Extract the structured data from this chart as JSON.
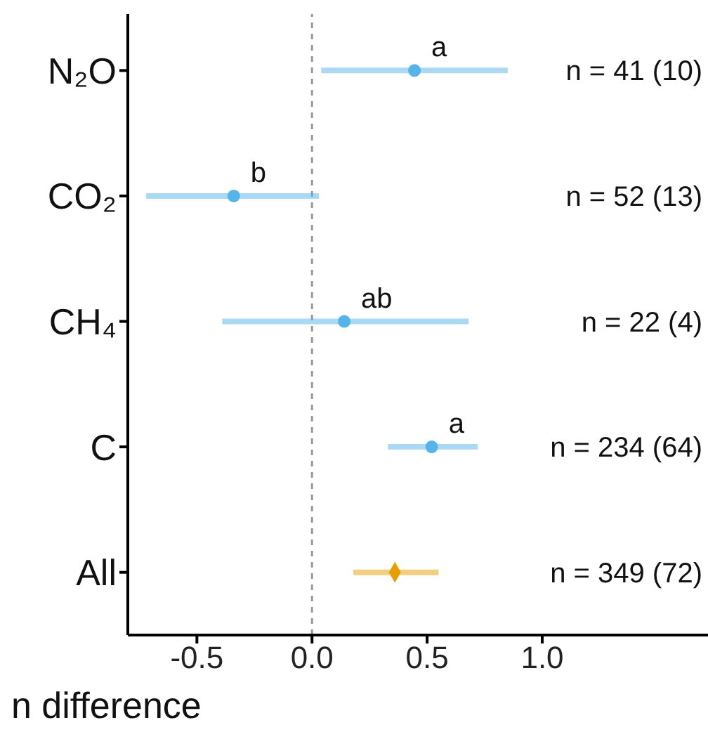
{
  "chart_data": {
    "type": "scatter",
    "orientation": "horizontal",
    "xlabel": "n difference",
    "categories": [
      "N₂O",
      "CO₂",
      "CH₄",
      "C",
      "All"
    ],
    "xlim": [
      -0.8,
      1.72
    ],
    "xticks": [
      {
        "value": -0.5,
        "label": "-0.5"
      },
      {
        "value": 0,
        "label": "0.0"
      },
      {
        "value": 0.5,
        "label": "0.5"
      },
      {
        "value": 1,
        "label": "1.0"
      }
    ],
    "series": [
      {
        "color": "#56b4e9",
        "marker": "circle",
        "values": [
          0.445,
          -0.34,
          0.14,
          0.52,
          null
        ],
        "errors": [
          [
            0.04,
            0.85
          ],
          [
            -0.72,
            0.03
          ],
          [
            -0.39,
            0.68
          ],
          [
            0.33,
            0.72
          ],
          null
        ]
      },
      {
        "color": "#e69f00",
        "marker": "diamond",
        "values": [
          null,
          null,
          null,
          null,
          0.36
        ],
        "errors": [
          null,
          null,
          null,
          null,
          [
            0.18,
            0.55
          ]
        ]
      }
    ],
    "ref_lines": [
      {
        "axis": "x",
        "value": 0,
        "line_style": "dashed",
        "color": "#999999"
      }
    ],
    "annotations": [
      {
        "text": "a",
        "x": 0.445,
        "y": "N₂O"
      },
      {
        "text": "b",
        "x": -0.34,
        "y": "CO₂"
      },
      {
        "text": "ab",
        "x": 0.14,
        "y": "CH₄"
      },
      {
        "text": "a",
        "x": 0.52,
        "y": "C"
      },
      "n = 41 (10)",
      "n = 52 (13)",
      "n = 22 (4)",
      "n = 234 (64)",
      "n = 349 (72)"
    ]
  }
}
